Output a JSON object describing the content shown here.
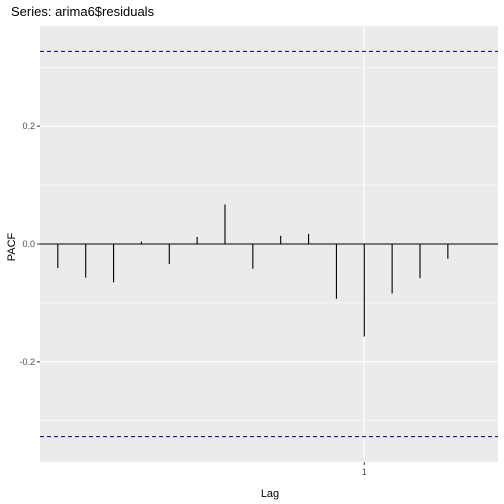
{
  "chart_data": {
    "type": "bar",
    "title": "Series: arima6$residuals",
    "xlabel": "Lag",
    "ylabel": "PACF",
    "xlim": [
      0.03,
      1.4
    ],
    "ylim": [
      -0.37,
      0.37
    ],
    "x_ticks": [
      {
        "value": 1,
        "label": "1"
      }
    ],
    "y_ticks": [
      {
        "value": 0.2,
        "label": "0.2"
      },
      {
        "value": 0.0,
        "label": "0.0"
      },
      {
        "value": -0.2,
        "label": "-0.2"
      }
    ],
    "grid": true,
    "x": [
      0.0833,
      0.1667,
      0.25,
      0.3333,
      0.4167,
      0.5,
      0.5833,
      0.6667,
      0.75,
      0.8333,
      0.9167,
      1.0,
      1.0833,
      1.1667,
      1.25
    ],
    "values": [
      -0.041,
      -0.057,
      -0.065,
      0.004,
      -0.034,
      0.012,
      0.067,
      -0.042,
      0.014,
      0.017,
      -0.093,
      -0.157,
      -0.084,
      -0.058,
      -0.025
    ],
    "confidence_bounds": [
      0.327,
      -0.327
    ],
    "colors": {
      "panel": "#ebebeb",
      "grid": "#ffffff",
      "bars": "#000000",
      "zero_line": "#000000",
      "confidence": "#00008b"
    }
  }
}
